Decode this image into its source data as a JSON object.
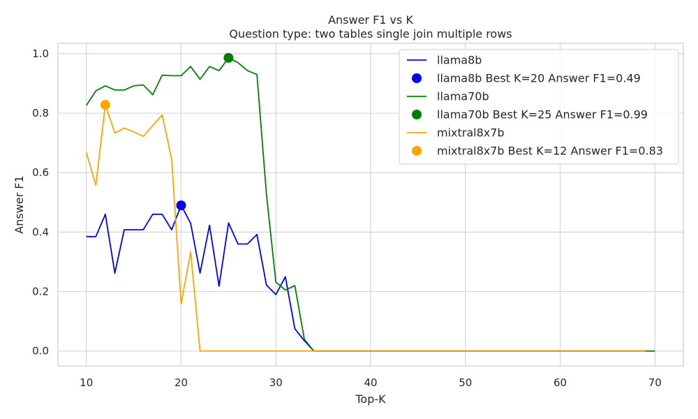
{
  "chart_data": {
    "type": "line",
    "title": "Answer F1 vs K",
    "subtitle": "Question type: two tables single join multiple rows",
    "xlabel": "Top-K",
    "ylabel": "Answer F1",
    "xlim": [
      7,
      73
    ],
    "ylim": [
      -0.05,
      1.035
    ],
    "xticks": [
      10,
      20,
      30,
      40,
      50,
      60,
      70
    ],
    "yticks": [
      0.0,
      0.2,
      0.4,
      0.6,
      0.8,
      1.0
    ],
    "xtick_labels": [
      "10",
      "20",
      "30",
      "40",
      "50",
      "60",
      "70"
    ],
    "ytick_labels": [
      "0.0",
      "0.2",
      "0.4",
      "0.6",
      "0.8",
      "1.0"
    ],
    "grid": true,
    "legend_position": "top-right",
    "series": [
      {
        "name": "llama8b",
        "color": "#0000ff",
        "x": [
          10,
          11,
          12,
          13,
          14,
          15,
          16,
          17,
          18,
          19,
          20,
          21,
          22,
          23,
          24,
          25,
          26,
          27,
          28,
          29,
          30,
          31,
          32,
          33,
          34,
          35,
          40,
          45,
          50,
          55,
          60,
          65,
          69
        ],
        "y": [
          0.385,
          0.385,
          0.46,
          0.262,
          0.408,
          0.408,
          0.408,
          0.46,
          0.46,
          0.408,
          0.49,
          0.43,
          0.262,
          0.423,
          0.218,
          0.431,
          0.36,
          0.36,
          0.392,
          0.222,
          0.19,
          0.25,
          0.075,
          0.035,
          0.0,
          0.0,
          0.0,
          0.0,
          0.0,
          0.0,
          0.0,
          0.0,
          0.0
        ]
      },
      {
        "name": "llama70b",
        "color": "#008000",
        "x": [
          10,
          11,
          12,
          13,
          14,
          15,
          16,
          17,
          18,
          19,
          20,
          21,
          22,
          23,
          24,
          25,
          26,
          27,
          28,
          29,
          30,
          31,
          32,
          33,
          34,
          35,
          40,
          45,
          50,
          55,
          60,
          65,
          70
        ],
        "y": [
          0.826,
          0.875,
          0.892,
          0.878,
          0.878,
          0.892,
          0.895,
          0.862,
          0.928,
          0.926,
          0.926,
          0.957,
          0.914,
          0.957,
          0.943,
          0.986,
          0.97,
          0.943,
          0.93,
          0.528,
          0.232,
          0.205,
          0.22,
          0.04,
          0.0,
          0.0,
          0.0,
          0.0,
          0.0,
          0.0,
          0.0,
          0.0,
          0.0
        ]
      },
      {
        "name": "mixtral8x7b",
        "color": "#ffa500",
        "x": [
          10,
          11,
          12,
          13,
          14,
          15,
          16,
          17,
          18,
          19,
          20,
          21,
          22,
          23,
          30,
          40,
          50,
          60,
          69
        ],
        "y": [
          0.667,
          0.558,
          0.828,
          0.733,
          0.75,
          0.737,
          0.722,
          0.758,
          0.794,
          0.645,
          0.158,
          0.334,
          0.0,
          0.0,
          0.0,
          0.0,
          0.0,
          0.0,
          0.0
        ]
      }
    ],
    "best_points": [
      {
        "name": "llama8b Best K=20 Answer F1=0.49",
        "color": "#0000ff",
        "x": 20,
        "y": 0.49
      },
      {
        "name": "llama70b Best K=25 Answer F1=0.99",
        "color": "#008000",
        "x": 25,
        "y": 0.986
      },
      {
        "name": "mixtral8x7b Best K=12 Answer F1=0.83",
        "color": "#ffa500",
        "x": 12,
        "y": 0.828
      }
    ],
    "legend": [
      {
        "kind": "line",
        "label": "llama8b",
        "color": "#0000ff"
      },
      {
        "kind": "marker",
        "label": "llama8b Best K=20 Answer F1=0.49",
        "color": "#0000ff"
      },
      {
        "kind": "line",
        "label": "llama70b",
        "color": "#008000"
      },
      {
        "kind": "marker",
        "label": "llama70b Best K=25 Answer F1=0.99",
        "color": "#008000"
      },
      {
        "kind": "line",
        "label": "mixtral8x7b",
        "color": "#ffa500"
      },
      {
        "kind": "marker",
        "label": "mixtral8x7b Best K=12 Answer F1=0.83",
        "color": "#ffa500"
      }
    ]
  }
}
